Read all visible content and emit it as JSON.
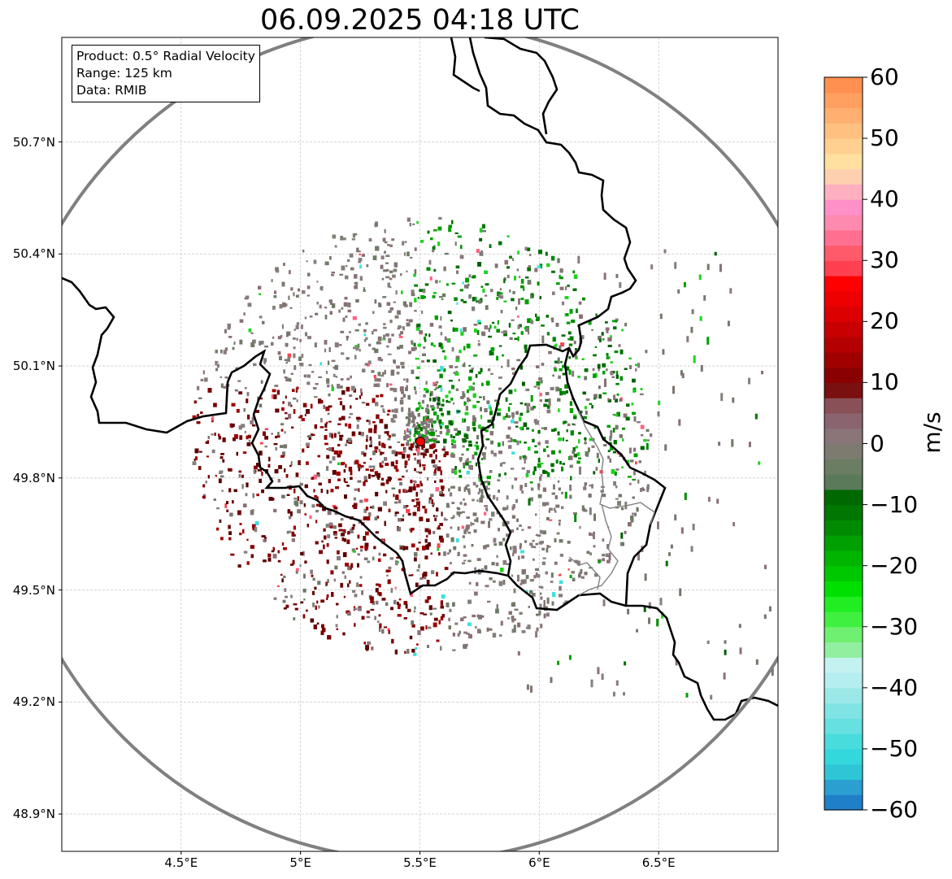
{
  "title": "06.09.2025 04:18 UTC",
  "info": {
    "product": "Product: 0.5° Radial Velocity",
    "range": "Range: 125 km",
    "data": "Data: RMIB"
  },
  "map": {
    "lon_range": [
      4.0,
      7.0
    ],
    "lat_range": [
      48.8,
      50.98
    ],
    "radar_site": {
      "lon": 5.505,
      "lat": 49.915
    },
    "range_ring_km": 125,
    "grid": true,
    "x_ticks": [
      {
        "value": 4.5,
        "label": "4.5°E"
      },
      {
        "value": 5.0,
        "label": "5°E"
      },
      {
        "value": 5.5,
        "label": "5.5°E"
      },
      {
        "value": 6.0,
        "label": "6°E"
      },
      {
        "value": 6.5,
        "label": "6.5°E"
      }
    ],
    "y_ticks": [
      {
        "value": 50.7,
        "label": "50.7°N"
      },
      {
        "value": 50.4,
        "label": "50.4°N"
      },
      {
        "value": 50.1,
        "label": "50.1°N"
      },
      {
        "value": 49.8,
        "label": "49.8°N"
      },
      {
        "value": 49.5,
        "label": "49.5°N"
      },
      {
        "value": 49.2,
        "label": "49.2°N"
      },
      {
        "value": 48.9,
        "label": "48.9°N"
      }
    ]
  },
  "colorbar": {
    "unit": "m/s",
    "min": -60,
    "max": 60,
    "ticks": [
      {
        "value": 60,
        "label": "60"
      },
      {
        "value": 50,
        "label": "50"
      },
      {
        "value": 40,
        "label": "40"
      },
      {
        "value": 30,
        "label": "30"
      },
      {
        "value": 20,
        "label": "20"
      },
      {
        "value": 10,
        "label": "10"
      },
      {
        "value": 0,
        "label": "0"
      },
      {
        "value": -10,
        "label": "−10"
      },
      {
        "value": -20,
        "label": "−20"
      },
      {
        "value": -30,
        "label": "−30"
      },
      {
        "value": -40,
        "label": "−40"
      },
      {
        "value": -50,
        "label": "−50"
      },
      {
        "value": -60,
        "label": "−60"
      }
    ],
    "colors": [
      "#1f7fc8",
      "#2a9fd0",
      "#2ec6d6",
      "#33d8dc",
      "#48dcdc",
      "#66e0e0",
      "#80e4e4",
      "#9ae8e8",
      "#b4eeee",
      "#c4f2f0",
      "#90f0a0",
      "#70f070",
      "#40f040",
      "#20ee20",
      "#00e000",
      "#00c800",
      "#00b400",
      "#00a000",
      "#008a00",
      "#007800",
      "#006800",
      "#5a7a5a",
      "#6b7d62",
      "#7d7a70",
      "#8a7578",
      "#8a6570",
      "#8a5058",
      "#7a1010",
      "#8a0000",
      "#a00000",
      "#b40000",
      "#c80000",
      "#dc0000",
      "#ee0000",
      "#ff0000",
      "#ff4050",
      "#ff5a6a",
      "#ff7090",
      "#ff8ab0",
      "#ff90c8",
      "#ffb0c0",
      "#ffd0b0",
      "#ffe0a0",
      "#ffd090",
      "#ffc080",
      "#ffb070",
      "#ffa060",
      "#ff9050"
    ]
  },
  "colors": {
    "range_ring": "#808080",
    "border": "#000000",
    "site_marker": "#ff0000",
    "grid": "#bbbbbb"
  }
}
